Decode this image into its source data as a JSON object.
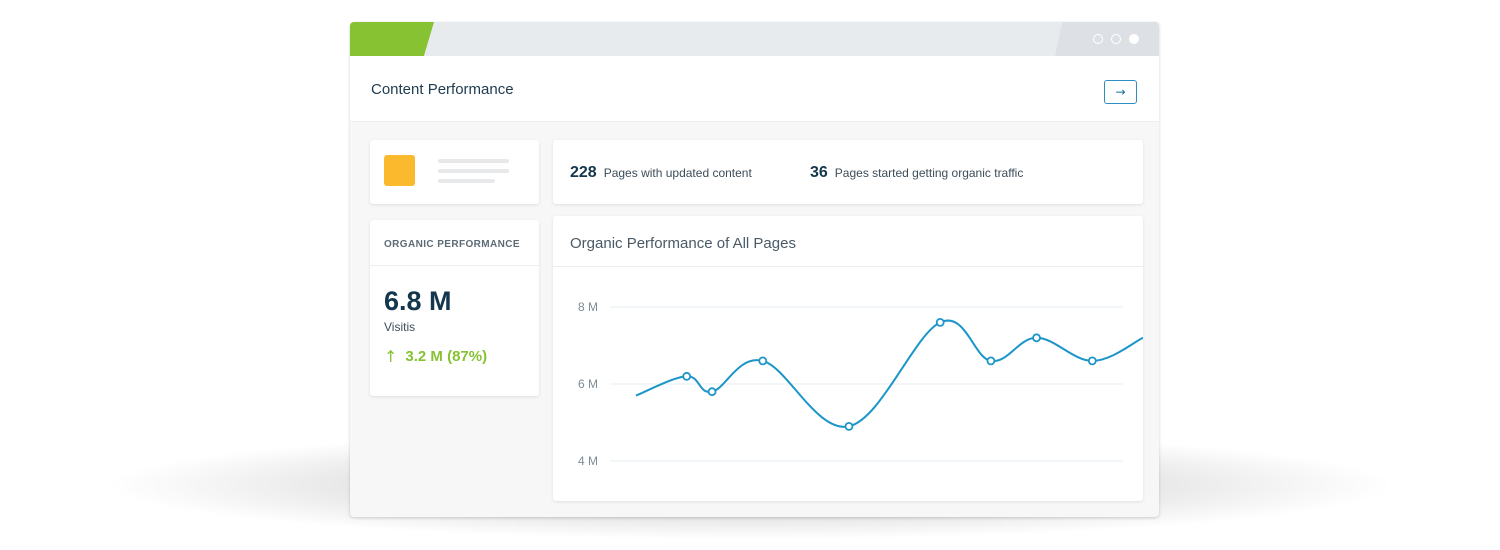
{
  "window": {
    "title": "Content Performance",
    "accent_color": "#86c232",
    "window_controls": [
      "dot-outline",
      "dot-outline",
      "dot-filled"
    ]
  },
  "placeholder_card": {
    "icon_color": "#fbb92e"
  },
  "organic_card": {
    "label": "ORGANIC PERFORMANCE",
    "value": "6.8 M",
    "sub_label": "Visitis",
    "change_icon": "up-arrow-icon",
    "change": "3.2 M (87%)"
  },
  "stats": [
    {
      "number": "228",
      "text": "Pages with updated content"
    },
    {
      "number": "36",
      "text": "Pages started getting organic traffic"
    }
  ],
  "chart_card": {
    "title": "Organic Performance of All Pages"
  },
  "chart_data": {
    "type": "line",
    "title": "Organic Performance of All Pages",
    "y_ticks": [
      {
        "value": 8,
        "label": "8 M"
      },
      {
        "value": 6,
        "label": "6 M"
      },
      {
        "value": 4,
        "label": "4 M"
      }
    ],
    "ylim": [
      4,
      8
    ],
    "x_range": [
      0,
      10
    ],
    "grid": true,
    "series": [
      {
        "color": "#1c95c9",
        "points": [
          {
            "x": 0.0,
            "y": 5.7,
            "marker": false
          },
          {
            "x": 1.0,
            "y": 6.2,
            "marker": true
          },
          {
            "x": 1.5,
            "y": 5.8,
            "marker": true
          },
          {
            "x": 2.5,
            "y": 6.6,
            "marker": true
          },
          {
            "x": 4.2,
            "y": 4.9,
            "marker": true
          },
          {
            "x": 6.0,
            "y": 7.6,
            "marker": true
          },
          {
            "x": 7.0,
            "y": 6.6,
            "marker": true
          },
          {
            "x": 7.9,
            "y": 7.2,
            "marker": true
          },
          {
            "x": 9.0,
            "y": 6.6,
            "marker": true
          },
          {
            "x": 10.0,
            "y": 7.2,
            "marker": false
          }
        ]
      }
    ]
  }
}
